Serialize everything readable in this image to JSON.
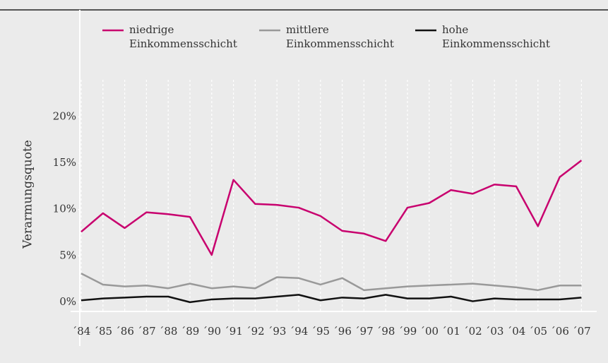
{
  "chart_data": {
    "type": "line",
    "y_label": "Verarmungsquote",
    "categories": [
      "´84",
      "´85",
      "´86",
      "´87",
      "´88",
      "´89",
      "´90",
      "´91",
      "´92",
      "´93",
      "´94",
      "´95",
      "´96",
      "´97",
      "´98",
      "´99",
      "´00",
      "´01",
      "´02",
      "´03",
      "´04",
      "´05",
      "´06",
      "´07"
    ],
    "series": [
      {
        "name": "niedrige Einkommensschicht",
        "color": "#c8006e",
        "values": [
          7.6,
          9.6,
          8.0,
          9.7,
          9.5,
          9.2,
          5.1,
          13.2,
          10.6,
          10.5,
          10.2,
          9.3,
          7.7,
          7.4,
          6.6,
          10.2,
          10.7,
          12.1,
          11.7,
          12.7,
          12.5,
          8.2,
          13.5,
          15.3
        ]
      },
      {
        "name": "mittlere Einkommensschicht",
        "color": "#999999",
        "values": [
          3.1,
          1.9,
          1.7,
          1.8,
          1.5,
          2.0,
          1.5,
          1.7,
          1.5,
          2.7,
          2.6,
          1.9,
          2.6,
          1.3,
          1.5,
          1.7,
          1.8,
          1.9,
          2.0,
          1.8,
          1.6,
          1.3,
          1.8,
          1.8
        ]
      },
      {
        "name": "hohe Einkommensschicht",
        "color": "#111111",
        "values": [
          0.2,
          0.4,
          0.5,
          0.6,
          0.6,
          0.0,
          0.3,
          0.4,
          0.4,
          0.6,
          0.8,
          0.2,
          0.5,
          0.4,
          0.8,
          0.4,
          0.4,
          0.6,
          0.1,
          0.4,
          0.3,
          0.3,
          0.3,
          0.5
        ]
      }
    ],
    "ylim": [
      -1,
      24
    ],
    "yticks": [
      {
        "value": 0,
        "label": "0%"
      },
      {
        "value": 5,
        "label": "5%"
      },
      {
        "value": 10,
        "label": "10%"
      },
      {
        "value": 15,
        "label": "15%"
      },
      {
        "value": 20,
        "label": "20%"
      }
    ]
  }
}
